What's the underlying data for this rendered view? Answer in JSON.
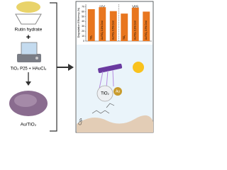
{
  "scheme": {
    "precursor": "Rutin hydrate",
    "reagents": "TiO₂ P25 + HAuCl₄",
    "product": "Au/TiO₂",
    "particle": "TiO₂",
    "metal": "Au",
    "pollutant": "CIP"
  },
  "chart_data": {
    "type": "bar",
    "ylabel": "Degradation Efficiency (%)",
    "groups": [
      "UV",
      "VIS"
    ],
    "categories": [
      "TiO₂",
      "Au/TiO₂ 0.1% Cent",
      "Au/TiO₂ 0.5% Cent",
      "TiO₂",
      "Au/TiO₂ 0.1% Cent",
      "Au/TiO₂ 0.5% Cent"
    ],
    "values": [
      65,
      69,
      61,
      56,
      68,
      60
    ],
    "color": "#e8761f",
    "ylim": [
      0,
      75
    ],
    "yticks": [
      0,
      10,
      20,
      30,
      40,
      50,
      60,
      70
    ]
  }
}
